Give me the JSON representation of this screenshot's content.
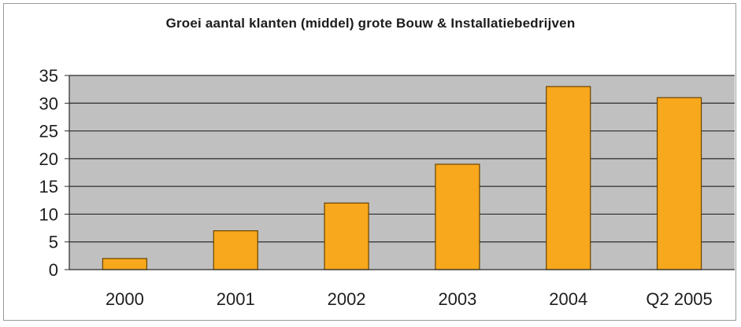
{
  "chart_data": {
    "type": "bar",
    "title": "Groei aantal klanten (middel) grote Bouw & Installatiebedrijven",
    "xlabel": "",
    "ylabel": "",
    "categories": [
      "2000",
      "2001",
      "2002",
      "2003",
      "2004",
      "Q2 2005"
    ],
    "values": [
      2,
      7,
      12,
      19,
      33,
      31
    ],
    "ylim": [
      0,
      35
    ],
    "yticks": [
      0,
      5,
      10,
      15,
      20,
      25,
      30,
      35
    ],
    "grid": true,
    "legend": "none",
    "colors": {
      "bar_fill": "#f8a81c",
      "bar_stroke": "#6a4300",
      "plot_background": "#c0c0c0",
      "gridline": "#2b2b2b"
    }
  }
}
